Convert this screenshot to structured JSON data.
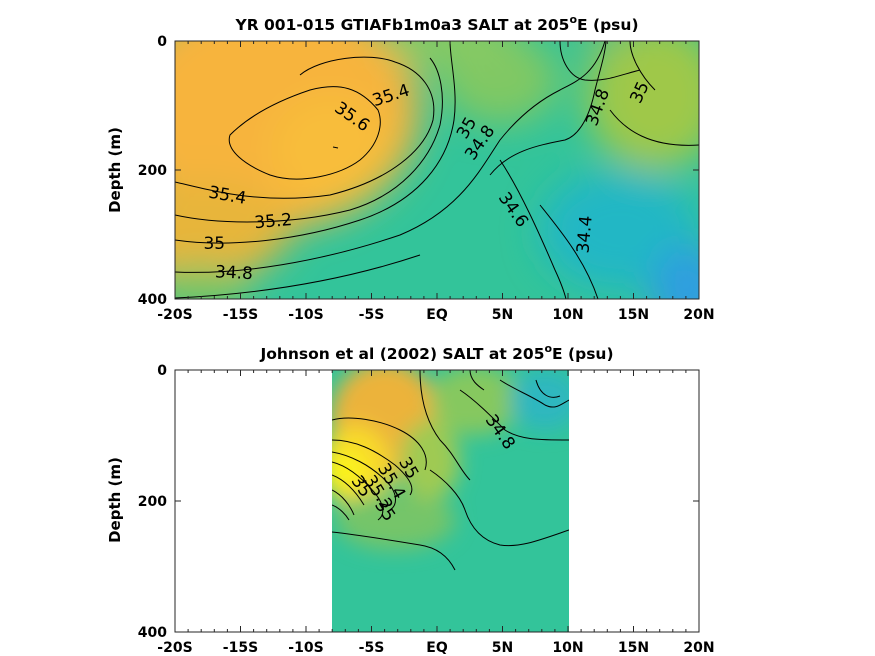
{
  "chart_data": [
    {
      "type": "heatmap",
      "title": "YR 001-015 GTIAFb1m0a3 SALT at 205",
      "title_sup": "o",
      "title_tail": "E (psu)",
      "ylabel": "Depth (m)",
      "xlabel": "",
      "x_ticks": [
        "-20S",
        "-15S",
        "-10S",
        "-5S",
        "EQ",
        "5N",
        "10N",
        "15N",
        "20N"
      ],
      "y_ticks": [
        "0",
        "200",
        "400"
      ],
      "xlim": [
        -20,
        20
      ],
      "ylim": [
        0,
        400
      ],
      "y_reversed": true,
      "colormap": "parula",
      "contour_labels": [
        {
          "text": "35.4",
          "x": -3.5,
          "y": 85,
          "rot": -18
        },
        {
          "text": "35.6",
          "x": -6.5,
          "y": 118,
          "rot": 35
        },
        {
          "text": "35.4",
          "x": -16,
          "y": 240,
          "rot": 10
        },
        {
          "text": "35.2",
          "x": -12.5,
          "y": 280,
          "rot": -5
        },
        {
          "text": "35",
          "x": -17,
          "y": 315,
          "rot": 0
        },
        {
          "text": "34.8",
          "x": -15.5,
          "y": 360,
          "rot": 3
        },
        {
          "text": "35",
          "x": 2.3,
          "y": 135,
          "rot": -60
        },
        {
          "text": "34.8",
          "x": 3.3,
          "y": 158,
          "rot": -55
        },
        {
          "text": "34.6",
          "x": 5.8,
          "y": 262,
          "rot": 55
        },
        {
          "text": "34.4",
          "x": 11.3,
          "y": 300,
          "rot": -85
        },
        {
          "text": "34.8",
          "x": 12.3,
          "y": 103,
          "rot": -70
        },
        {
          "text": "35",
          "x": 15.5,
          "y": 80,
          "rot": -65
        }
      ]
    },
    {
      "type": "heatmap",
      "title": "Johnson et al (2002) SALT at 205",
      "title_sup": "o",
      "title_tail": "E (psu)",
      "ylabel": "Depth (m)",
      "xlabel": "",
      "x_ticks": [
        "-20S",
        "-15S",
        "-10S",
        "-5S",
        "EQ",
        "5N",
        "10N",
        "15N",
        "20N"
      ],
      "y_ticks": [
        "0",
        "200",
        "400"
      ],
      "xlim": [
        -20,
        20
      ],
      "ylim": [
        0,
        400
      ],
      "y_reversed": true,
      "data_xrange": [
        -8,
        10
      ],
      "colormap": "parula",
      "contour_labels": [
        {
          "text": "34.8",
          "x": 4.8,
          "y": 95,
          "rot": 55
        },
        {
          "text": "35",
          "x": -2.2,
          "y": 150,
          "rot": 60
        },
        {
          "text": "35.4",
          "x": -3.5,
          "y": 170,
          "rot": 60
        },
        {
          "text": "35.2",
          "x": -4.5,
          "y": 188,
          "rot": 58
        },
        {
          "text": "35",
          "x": -4,
          "y": 215,
          "rot": 55
        },
        {
          "text": "35",
          "x": -5.8,
          "y": 178,
          "rot": 55
        }
      ]
    }
  ]
}
